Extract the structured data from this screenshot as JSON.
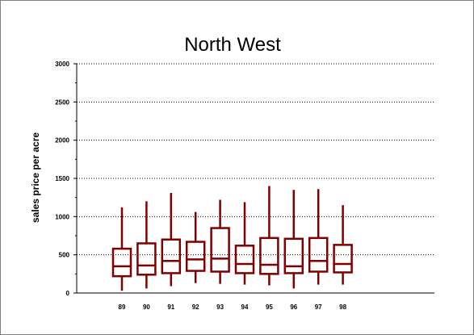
{
  "chart_data": {
    "type": "boxplot",
    "title": "North West",
    "xlabel": "",
    "ylabel": "sales price per acre",
    "ylim": [
      0,
      3000
    ],
    "yticks": [
      0,
      500,
      1000,
      1500,
      2000,
      2500,
      3000
    ],
    "grid": "horizontal dotted",
    "box_color": "#7f0000",
    "categories": [
      "89",
      "90",
      "91",
      "92",
      "93",
      "94",
      "95",
      "96",
      "97",
      "98"
    ],
    "boxes": [
      {
        "label": "89",
        "min": 30,
        "q1": 220,
        "median": 350,
        "q3": 580,
        "max": 1120
      },
      {
        "label": "90",
        "min": 60,
        "q1": 240,
        "median": 360,
        "q3": 650,
        "max": 1200
      },
      {
        "label": "91",
        "min": 90,
        "q1": 260,
        "median": 420,
        "q3": 700,
        "max": 1310
      },
      {
        "label": "92",
        "min": 130,
        "q1": 290,
        "median": 440,
        "q3": 670,
        "max": 1060
      },
      {
        "label": "93",
        "min": 120,
        "q1": 280,
        "median": 450,
        "q3": 850,
        "max": 1220
      },
      {
        "label": "94",
        "min": 110,
        "q1": 260,
        "median": 380,
        "q3": 620,
        "max": 1190
      },
      {
        "label": "95",
        "min": 100,
        "q1": 250,
        "median": 370,
        "q3": 720,
        "max": 1400
      },
      {
        "label": "96",
        "min": 60,
        "q1": 260,
        "median": 350,
        "q3": 710,
        "max": 1350
      },
      {
        "label": "97",
        "min": 110,
        "q1": 280,
        "median": 420,
        "q3": 720,
        "max": 1360
      },
      {
        "label": "98",
        "min": 110,
        "q1": 270,
        "median": 380,
        "q3": 630,
        "max": 1150
      }
    ]
  }
}
